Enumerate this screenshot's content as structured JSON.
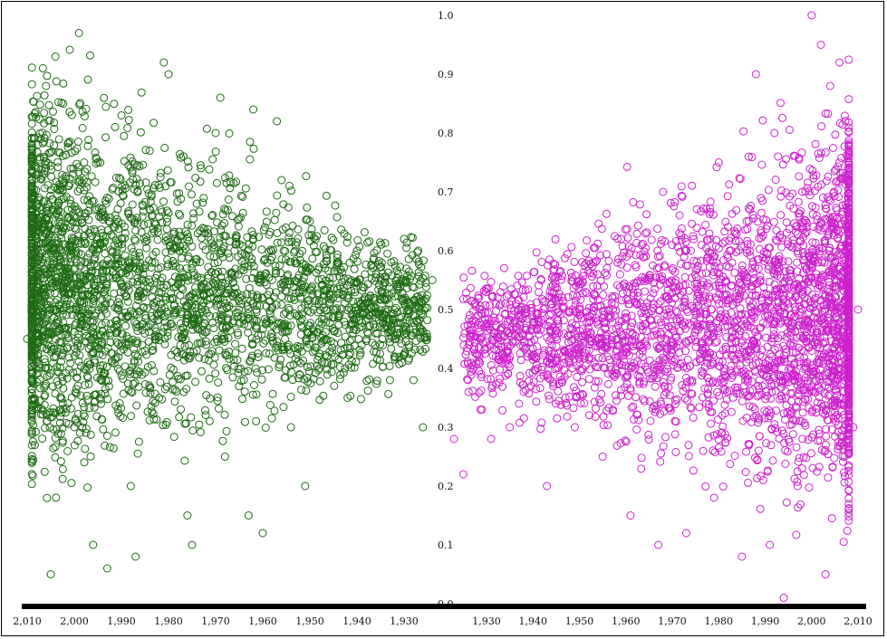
{
  "chart_data": {
    "type": "scatter",
    "title": "",
    "xlabel": "",
    "ylabel": "",
    "ylim": [
      0.0,
      1.0
    ],
    "y_ticks": [
      "0.0",
      "0.1",
      "0.2",
      "0.3",
      "0.4",
      "0.5",
      "0.6",
      "0.7",
      "0.8",
      "0.9",
      "1.0"
    ],
    "x_ticks_left": [
      "2,010",
      "2,000",
      "1,990",
      "1,980",
      "1,970",
      "1,960",
      "1,950",
      "1,940",
      "1,930"
    ],
    "x_ticks_right": [
      "1,930",
      "1,940",
      "1,950",
      "1,960",
      "1,970",
      "1,980",
      "1,990",
      "2,000",
      "2,010"
    ],
    "xlim_left": [
      2010,
      1923
    ],
    "xlim_right": [
      1920,
      2010
    ],
    "grid": false,
    "legend": "none",
    "series": [
      {
        "side": "left",
        "color": "#1f6b14",
        "x": [
          2010,
          2008,
          2006,
          2004,
          2002,
          2000,
          1998,
          1996,
          1994,
          1992,
          1990,
          1988,
          1986,
          1984,
          1982,
          1980,
          1978,
          1976,
          1974,
          1972,
          1970,
          1968,
          1966,
          1964,
          1962,
          1960,
          1958,
          1956,
          1954,
          1952,
          1950,
          1948,
          1946,
          1944,
          1942,
          1940,
          1938,
          1936,
          1934,
          1932,
          1930,
          1928,
          1926,
          1924,
          2005,
          1999,
          1993,
          1987,
          1981,
          1975,
          1969,
          1963,
          1957,
          1951,
          1945,
          1939,
          1933,
          1927
        ],
        "y": [
          0.45,
          0.62,
          0.88,
          0.93,
          0.55,
          0.3,
          0.72,
          0.1,
          0.66,
          0.41,
          0.83,
          0.2,
          0.58,
          0.77,
          0.35,
          0.9,
          0.5,
          0.15,
          0.68,
          0.44,
          0.8,
          0.25,
          0.6,
          0.38,
          0.84,
          0.12,
          0.55,
          0.72,
          0.3,
          0.48,
          0.65,
          0.4,
          0.52,
          0.58,
          0.35,
          0.6,
          0.45,
          0.56,
          0.5,
          0.42,
          0.62,
          0.38,
          0.3,
          0.55,
          0.05,
          0.97,
          0.06,
          0.08,
          0.92,
          0.1,
          0.86,
          0.15,
          0.82,
          0.2,
          0.5,
          0.44,
          0.38,
          0.6
        ]
      },
      {
        "side": "right",
        "color": "#cc22cc",
        "x": [
          1923,
          1926,
          1929,
          1932,
          1935,
          1938,
          1941,
          1944,
          1947,
          1950,
          1953,
          1956,
          1959,
          1962,
          1965,
          1968,
          1971,
          1974,
          1977,
          1980,
          1983,
          1986,
          1989,
          1992,
          1995,
          1998,
          2001,
          2004,
          2007,
          2010,
          1925,
          1931,
          1937,
          1943,
          1949,
          1955,
          1961,
          1967,
          1973,
          1979,
          1985,
          1991,
          1997,
          2003,
          2009,
          2000,
          2002,
          2006,
          1994,
          1988
        ],
        "y": [
          0.28,
          0.38,
          0.33,
          0.42,
          0.3,
          0.36,
          0.4,
          0.45,
          0.35,
          0.5,
          0.58,
          0.45,
          0.62,
          0.4,
          0.55,
          0.7,
          0.48,
          0.6,
          0.52,
          0.75,
          0.42,
          0.65,
          0.55,
          0.8,
          0.48,
          0.7,
          0.6,
          0.88,
          0.55,
          0.5,
          0.22,
          0.28,
          0.34,
          0.2,
          0.3,
          0.25,
          0.15,
          0.1,
          0.12,
          0.18,
          0.08,
          0.1,
          0.2,
          0.05,
          0.3,
          1.0,
          0.95,
          0.92,
          0.01,
          0.9
        ]
      }
    ]
  }
}
